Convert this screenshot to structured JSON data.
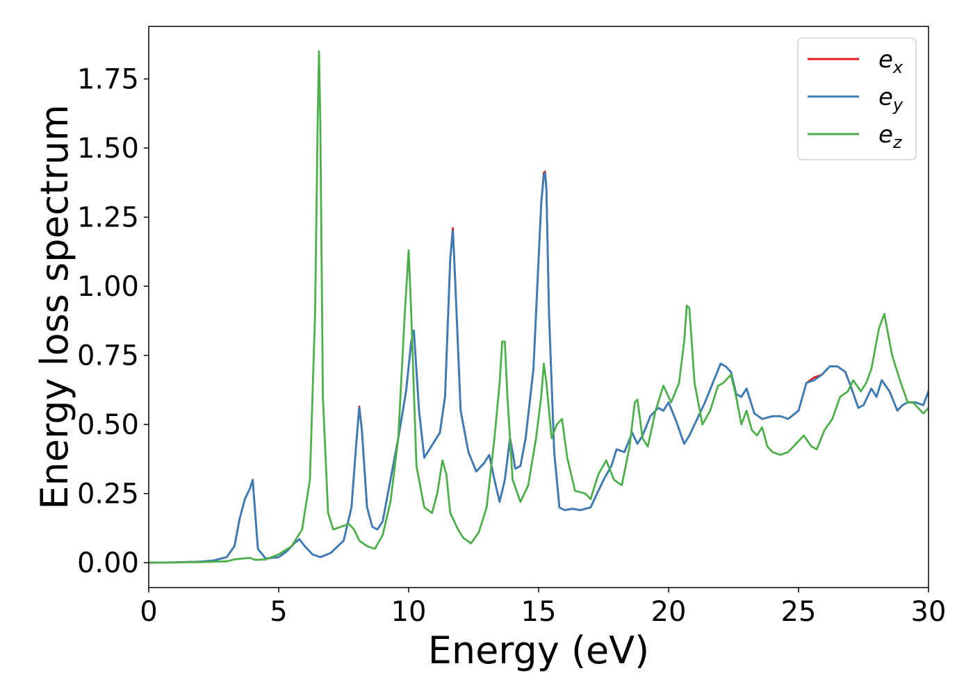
{
  "chart_data": {
    "type": "line",
    "title": "",
    "xlabel": "Energy (eV)",
    "ylabel": "Energy loss spectrum",
    "xlim": [
      0,
      30
    ],
    "ylim": [
      -0.09,
      1.94
    ],
    "xticks": [
      0,
      5,
      10,
      15,
      20,
      25,
      30
    ],
    "xtick_labels": [
      "0",
      "5",
      "10",
      "15",
      "20",
      "25",
      "30"
    ],
    "yticks": [
      0.0,
      0.25,
      0.5,
      0.75,
      1.0,
      1.25,
      1.5,
      1.75
    ],
    "ytick_labels": [
      "0.00",
      "0.25",
      "0.50",
      "0.75",
      "1.00",
      "1.25",
      "1.50",
      "1.75"
    ],
    "grid": false,
    "legend_position": "top-right",
    "series": [
      {
        "name": "e_x",
        "label_base": "e",
        "label_sub": "x",
        "color": "#e41a1c",
        "x": [
          0,
          1,
          2,
          2.5,
          3,
          3.3,
          3.5,
          3.7,
          3.9,
          4.0,
          4.2,
          4.5,
          5.0,
          5.3,
          5.6,
          5.8,
          6.0,
          6.3,
          6.6,
          7.0,
          7.5,
          7.8,
          8.0,
          8.1,
          8.2,
          8.4,
          8.6,
          8.8,
          9.0,
          9.3,
          9.6,
          9.9,
          10.1,
          10.2,
          10.4,
          10.6,
          10.8,
          11.0,
          11.2,
          11.4,
          11.6,
          11.7,
          11.8,
          12.0,
          12.3,
          12.6,
          12.9,
          13.1,
          13.3,
          13.5,
          13.7,
          13.9,
          14.0,
          14.1,
          14.3,
          14.5,
          14.8,
          15.0,
          15.1,
          15.2,
          15.25,
          15.3,
          15.4,
          15.6,
          15.8,
          16.0,
          16.3,
          16.6,
          17.0,
          17.2,
          17.5,
          17.8,
          18.0,
          18.3,
          18.6,
          18.8,
          19.0,
          19.3,
          19.6,
          19.8,
          20.0,
          20.3,
          20.6,
          20.8,
          21.1,
          21.4,
          21.7,
          22.0,
          22.2,
          22.4,
          22.6,
          22.8,
          23.0,
          23.3,
          23.6,
          24.0,
          24.3,
          24.6,
          25.0,
          25.3,
          25.6,
          25.9,
          26.2,
          26.5,
          26.8,
          27.0,
          27.3,
          27.5,
          27.8,
          28.0,
          28.2,
          28.5,
          28.8,
          29.0,
          29.2,
          29.5,
          29.8,
          30.0
        ],
        "y": [
          0.0,
          0.001,
          0.004,
          0.008,
          0.02,
          0.06,
          0.16,
          0.23,
          0.27,
          0.3,
          0.05,
          0.015,
          0.02,
          0.04,
          0.07,
          0.085,
          0.06,
          0.03,
          0.02,
          0.035,
          0.08,
          0.2,
          0.45,
          0.565,
          0.48,
          0.2,
          0.13,
          0.12,
          0.15,
          0.3,
          0.45,
          0.62,
          0.8,
          0.84,
          0.55,
          0.38,
          0.41,
          0.44,
          0.47,
          0.6,
          1.1,
          1.21,
          1.0,
          0.55,
          0.4,
          0.33,
          0.36,
          0.39,
          0.3,
          0.22,
          0.3,
          0.45,
          0.4,
          0.34,
          0.35,
          0.45,
          0.7,
          1.1,
          1.3,
          1.41,
          1.415,
          1.35,
          0.9,
          0.4,
          0.2,
          0.19,
          0.195,
          0.19,
          0.2,
          0.24,
          0.3,
          0.35,
          0.41,
          0.4,
          0.47,
          0.43,
          0.46,
          0.53,
          0.56,
          0.55,
          0.58,
          0.51,
          0.43,
          0.46,
          0.52,
          0.58,
          0.65,
          0.72,
          0.71,
          0.69,
          0.61,
          0.6,
          0.63,
          0.54,
          0.52,
          0.53,
          0.53,
          0.52,
          0.55,
          0.65,
          0.67,
          0.68,
          0.71,
          0.71,
          0.69,
          0.64,
          0.56,
          0.57,
          0.63,
          0.6,
          0.66,
          0.62,
          0.55,
          0.57,
          0.58,
          0.58,
          0.57,
          0.62
        ]
      },
      {
        "name": "e_y",
        "label_base": "e",
        "label_sub": "y",
        "color": "#377eb8",
        "x": [
          0,
          1,
          2,
          2.5,
          3,
          3.3,
          3.5,
          3.7,
          3.9,
          4.0,
          4.2,
          4.5,
          5.0,
          5.3,
          5.6,
          5.8,
          6.0,
          6.3,
          6.6,
          7.0,
          7.5,
          7.8,
          8.0,
          8.1,
          8.2,
          8.4,
          8.6,
          8.8,
          9.0,
          9.3,
          9.6,
          9.9,
          10.1,
          10.2,
          10.4,
          10.6,
          10.8,
          11.0,
          11.2,
          11.4,
          11.6,
          11.7,
          11.8,
          12.0,
          12.3,
          12.6,
          12.9,
          13.1,
          13.3,
          13.5,
          13.7,
          13.9,
          14.0,
          14.1,
          14.3,
          14.5,
          14.8,
          15.0,
          15.1,
          15.2,
          15.25,
          15.3,
          15.4,
          15.6,
          15.8,
          16.0,
          16.3,
          16.6,
          17.0,
          17.2,
          17.5,
          17.8,
          18.0,
          18.3,
          18.6,
          18.8,
          19.0,
          19.3,
          19.6,
          19.8,
          20.0,
          20.3,
          20.6,
          20.8,
          21.1,
          21.4,
          21.7,
          22.0,
          22.2,
          22.4,
          22.6,
          22.8,
          23.0,
          23.3,
          23.6,
          24.0,
          24.3,
          24.6,
          25.0,
          25.3,
          25.6,
          25.9,
          26.2,
          26.5,
          26.8,
          27.0,
          27.3,
          27.5,
          27.8,
          28.0,
          28.2,
          28.5,
          28.8,
          29.0,
          29.2,
          29.5,
          29.8,
          30.0
        ],
        "y": [
          0.0,
          0.001,
          0.004,
          0.008,
          0.02,
          0.06,
          0.16,
          0.23,
          0.27,
          0.3,
          0.05,
          0.015,
          0.02,
          0.04,
          0.07,
          0.085,
          0.06,
          0.03,
          0.02,
          0.035,
          0.08,
          0.2,
          0.45,
          0.56,
          0.48,
          0.2,
          0.13,
          0.12,
          0.15,
          0.3,
          0.45,
          0.62,
          0.8,
          0.84,
          0.55,
          0.38,
          0.41,
          0.44,
          0.47,
          0.6,
          1.1,
          1.2,
          1.0,
          0.55,
          0.4,
          0.33,
          0.36,
          0.39,
          0.3,
          0.22,
          0.3,
          0.45,
          0.4,
          0.34,
          0.35,
          0.45,
          0.7,
          1.1,
          1.3,
          1.4,
          1.41,
          1.35,
          0.9,
          0.4,
          0.2,
          0.19,
          0.195,
          0.19,
          0.2,
          0.24,
          0.3,
          0.35,
          0.41,
          0.4,
          0.47,
          0.43,
          0.46,
          0.53,
          0.56,
          0.55,
          0.58,
          0.51,
          0.43,
          0.46,
          0.52,
          0.58,
          0.65,
          0.72,
          0.71,
          0.69,
          0.61,
          0.6,
          0.63,
          0.54,
          0.52,
          0.53,
          0.53,
          0.52,
          0.55,
          0.65,
          0.66,
          0.68,
          0.71,
          0.71,
          0.69,
          0.64,
          0.56,
          0.57,
          0.63,
          0.6,
          0.66,
          0.62,
          0.55,
          0.57,
          0.58,
          0.58,
          0.57,
          0.62
        ]
      },
      {
        "name": "e_z",
        "label_base": "e",
        "label_sub": "z",
        "color": "#4daf4a",
        "x": [
          0,
          1,
          2,
          3,
          3.3,
          3.6,
          3.9,
          4.1,
          4.5,
          5.0,
          5.5,
          5.9,
          6.2,
          6.4,
          6.5,
          6.55,
          6.6,
          6.7,
          6.9,
          7.1,
          7.4,
          7.7,
          7.9,
          8.1,
          8.4,
          8.7,
          9.0,
          9.3,
          9.6,
          9.85,
          10.0,
          10.1,
          10.3,
          10.6,
          10.9,
          11.1,
          11.3,
          11.45,
          11.6,
          11.9,
          12.1,
          12.4,
          12.7,
          13.0,
          13.3,
          13.5,
          13.6,
          13.7,
          13.8,
          14.0,
          14.3,
          14.6,
          14.9,
          15.1,
          15.2,
          15.3,
          15.5,
          15.7,
          15.9,
          16.1,
          16.4,
          16.8,
          17.0,
          17.3,
          17.6,
          17.9,
          18.2,
          18.5,
          18.7,
          18.8,
          19.0,
          19.2,
          19.5,
          19.8,
          20.1,
          20.4,
          20.6,
          20.7,
          20.8,
          21.0,
          21.3,
          21.6,
          21.9,
          22.1,
          22.4,
          22.6,
          22.8,
          23.0,
          23.2,
          23.4,
          23.6,
          23.8,
          24.0,
          24.3,
          24.6,
          24.9,
          25.2,
          25.5,
          25.7,
          26.0,
          26.3,
          26.6,
          26.9,
          27.1,
          27.4,
          27.6,
          27.8,
          28.0,
          28.1,
          28.3,
          28.6,
          28.9,
          29.2,
          29.4,
          29.6,
          29.8,
          30.0
        ],
        "y": [
          0.0,
          0.001,
          0.002,
          0.005,
          0.012,
          0.015,
          0.017,
          0.01,
          0.012,
          0.03,
          0.06,
          0.12,
          0.3,
          0.9,
          1.6,
          1.85,
          1.6,
          0.6,
          0.18,
          0.12,
          0.13,
          0.14,
          0.12,
          0.08,
          0.06,
          0.05,
          0.1,
          0.22,
          0.45,
          0.9,
          1.13,
          0.9,
          0.35,
          0.2,
          0.18,
          0.25,
          0.37,
          0.32,
          0.18,
          0.12,
          0.09,
          0.07,
          0.11,
          0.2,
          0.45,
          0.65,
          0.8,
          0.8,
          0.6,
          0.3,
          0.22,
          0.28,
          0.45,
          0.6,
          0.72,
          0.65,
          0.45,
          0.5,
          0.52,
          0.38,
          0.26,
          0.25,
          0.23,
          0.32,
          0.37,
          0.3,
          0.28,
          0.42,
          0.58,
          0.59,
          0.45,
          0.42,
          0.55,
          0.64,
          0.58,
          0.65,
          0.8,
          0.93,
          0.92,
          0.65,
          0.5,
          0.55,
          0.64,
          0.65,
          0.68,
          0.6,
          0.5,
          0.55,
          0.48,
          0.46,
          0.49,
          0.42,
          0.4,
          0.39,
          0.4,
          0.43,
          0.46,
          0.42,
          0.41,
          0.48,
          0.52,
          0.6,
          0.62,
          0.66,
          0.62,
          0.65,
          0.7,
          0.8,
          0.85,
          0.9,
          0.75,
          0.66,
          0.58,
          0.58,
          0.56,
          0.54,
          0.56
        ]
      }
    ]
  }
}
